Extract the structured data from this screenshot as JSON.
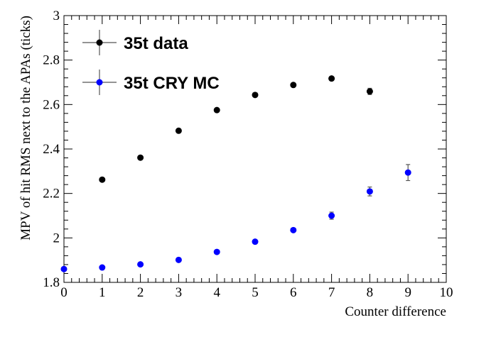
{
  "chart_data": {
    "type": "scatter",
    "xlabel": "Counter difference",
    "ylabel": "MPV of hit RMS next to the APAs (ticks)",
    "xlim": [
      0,
      10
    ],
    "ylim": [
      1.8,
      3.0
    ],
    "x_ticks": [
      "0",
      "1",
      "2",
      "3",
      "4",
      "5",
      "6",
      "7",
      "8",
      "9",
      "10"
    ],
    "y_ticks": [
      "1.8",
      "2",
      "2.2",
      "2.4",
      "2.6",
      "2.8",
      "3"
    ],
    "grid": false,
    "legend_position": "top-left",
    "series": [
      {
        "name": "35t data",
        "color": "#000000",
        "x": [
          1,
          2,
          3,
          4,
          5,
          6,
          7,
          8
        ],
        "y": [
          2.262,
          2.361,
          2.482,
          2.575,
          2.643,
          2.688,
          2.717,
          2.659
        ],
        "yerr": [
          0.004,
          0.004,
          0.004,
          0.005,
          0.005,
          0.006,
          0.008,
          0.014
        ]
      },
      {
        "name": "35t CRY MC",
        "color": "#0000ff",
        "x": [
          0,
          1,
          2,
          3,
          4,
          5,
          6,
          7,
          8,
          9
        ],
        "y": [
          1.86,
          1.867,
          1.881,
          1.901,
          1.937,
          1.983,
          2.035,
          2.1,
          2.209,
          2.294
        ],
        "yerr": [
          0.003,
          0.003,
          0.003,
          0.004,
          0.004,
          0.005,
          0.006,
          0.016,
          0.02,
          0.036
        ]
      }
    ]
  }
}
